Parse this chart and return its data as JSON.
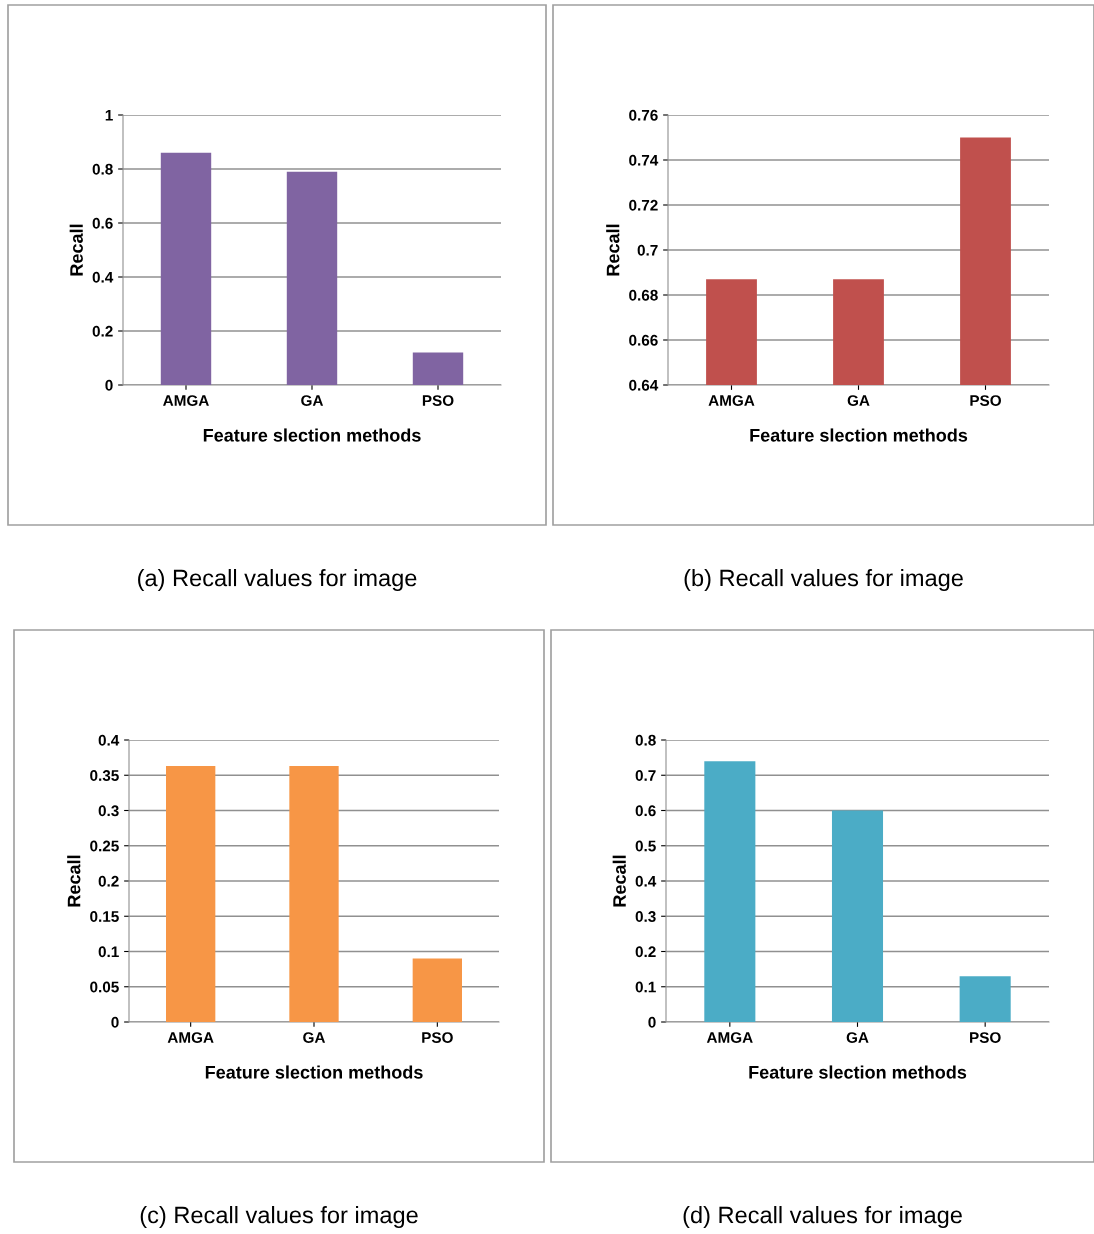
{
  "chart_data": [
    {
      "type": "bar",
      "categories": [
        "AMGA",
        "GA",
        "PSO"
      ],
      "values": [
        0.86,
        0.79,
        0.12
      ],
      "color": "#8064a2",
      "xlabel": "Feature slection methods",
      "ylabel": "Recall",
      "ylim": [
        0,
        1
      ],
      "yticks": [
        0,
        0.2,
        0.4,
        0.6,
        0.8,
        1
      ],
      "grid": "y",
      "annotations": [
        "(a) Recall values for image"
      ]
    },
    {
      "type": "bar",
      "categories": [
        "AMGA",
        "GA",
        "PSO"
      ],
      "values": [
        0.687,
        0.687,
        0.75
      ],
      "color": "#c0504d",
      "xlabel": "Feature slection methods",
      "ylabel": "Recall",
      "ylim": [
        0.64,
        0.76
      ],
      "yticks": [
        0.64,
        0.66,
        0.68,
        0.7,
        0.72,
        0.74,
        0.76
      ],
      "grid": "y",
      "annotations": [
        "(b) Recall values for image"
      ]
    },
    {
      "type": "bar",
      "categories": [
        "AMGA",
        "GA",
        "PSO"
      ],
      "values": [
        0.363,
        0.363,
        0.09
      ],
      "color": "#f79646",
      "xlabel": "Feature slection methods",
      "ylabel": "Recall",
      "ylim": [
        0,
        0.4
      ],
      "yticks": [
        0,
        0.05,
        0.1,
        0.15,
        0.2,
        0.25,
        0.3,
        0.35,
        0.4
      ],
      "grid": "y",
      "annotations": [
        "(c) Recall values for image"
      ]
    },
    {
      "type": "bar",
      "categories": [
        "AMGA",
        "GA",
        "PSO"
      ],
      "values": [
        0.74,
        0.6,
        0.13
      ],
      "color": "#4bacc6",
      "xlabel": "Feature slection methods",
      "ylabel": "Recall",
      "ylim": [
        0,
        0.8
      ],
      "yticks": [
        0,
        0.1,
        0.2,
        0.3,
        0.4,
        0.5,
        0.6,
        0.7,
        0.8
      ],
      "grid": "y",
      "annotations": [
        "(d) Recall values for image"
      ]
    }
  ]
}
